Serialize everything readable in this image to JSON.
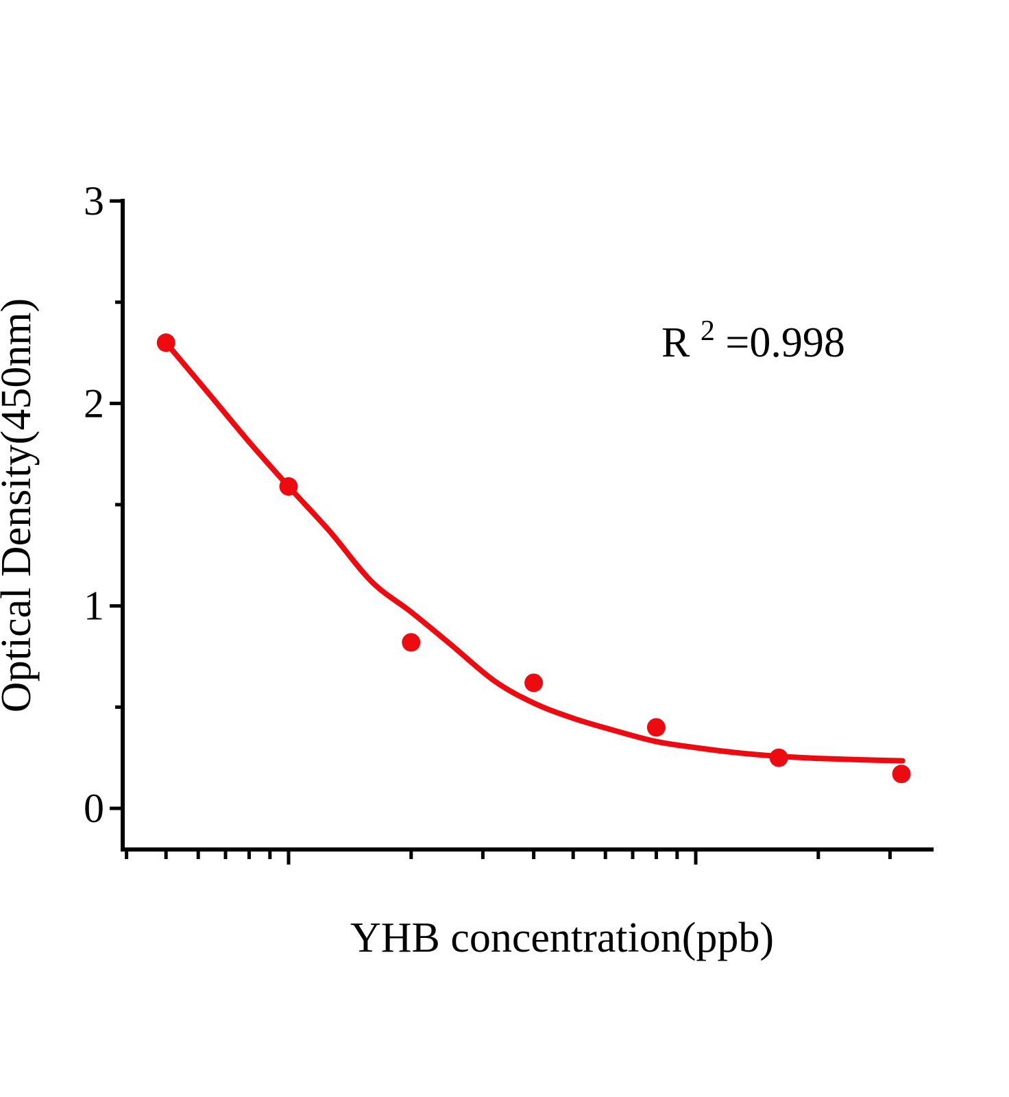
{
  "page": {
    "background": "#FFFFFF"
  },
  "colors": {
    "series": "#EC0B10",
    "axis": "#000000",
    "text": "#000000",
    "background": "#FFFFFF"
  },
  "chart_data": {
    "type": "scatter",
    "title": "",
    "xlabel": "YHB concentration(ppb)",
    "ylabel": "Optical Density(450nm)",
    "annotation": {
      "prefix": "R",
      "sup": "2",
      "suffix": "=0.998"
    },
    "x_scale": "log",
    "xlim": [
      0.4,
      38.5
    ],
    "ylim": [
      0,
      3
    ],
    "grid": false,
    "legend_position": "none",
    "x_unit": "ppb",
    "x_tick_labels_shown": false,
    "x_major_ticks": [
      1,
      10
    ],
    "x_minor_ticks": [
      0.4,
      0.5,
      0.6,
      0.7,
      0.8,
      0.9,
      2,
      3,
      4,
      5,
      6,
      7,
      8,
      9,
      20,
      30
    ],
    "y_major_ticks": [
      3,
      2,
      1,
      0
    ],
    "y_tick_labels": [
      "3",
      "2",
      "1",
      "0"
    ],
    "y_minor_ticks": [
      2.5,
      1.5,
      0.5
    ],
    "series": [
      {
        "name": "standard-points",
        "type": "scatter",
        "marker": "circle",
        "color": "#EC0B10",
        "x": [
          0.5,
          1,
          2,
          4,
          8,
          16,
          32
        ],
        "od": [
          2.3,
          1.59,
          0.82,
          0.62,
          0.4,
          0.25,
          0.17
        ]
      },
      {
        "name": "fitted-curve",
        "type": "line",
        "color": "#EC0B10",
        "x": [
          0.5,
          0.63,
          0.8,
          1.0,
          1.26,
          1.6,
          2.0,
          2.5,
          3.2,
          4.0,
          5.0,
          6.3,
          8.0,
          10.0,
          12.6,
          16.0,
          20.0,
          25.4,
          32.2
        ],
        "od": [
          2.3,
          2.06,
          1.81,
          1.59,
          1.37,
          1.12,
          0.97,
          0.81,
          0.63,
          0.52,
          0.445,
          0.385,
          0.33,
          0.3,
          0.275,
          0.257,
          0.247,
          0.24,
          0.235
        ]
      }
    ],
    "r_squared": 0.998
  }
}
